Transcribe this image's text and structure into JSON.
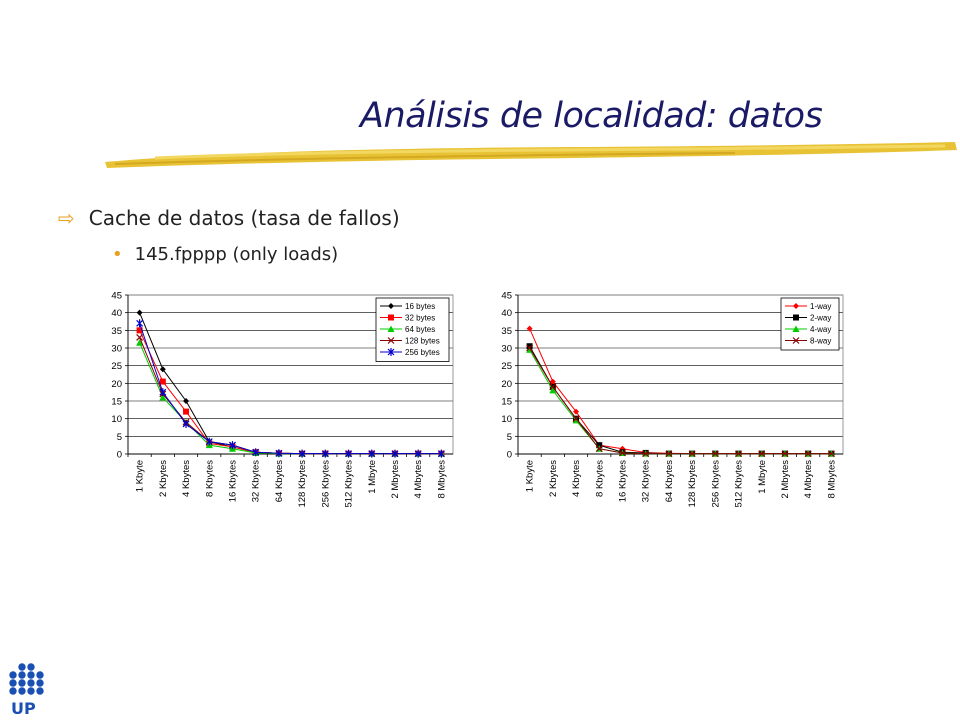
{
  "slide": {
    "title": "Análisis de localidad: datos",
    "bullet1": "Cache de datos (tasa de fallos)",
    "bullet2": "145.fpppp (only loads)",
    "logo_text": "UP"
  },
  "colors": {
    "accent": "#e8a020",
    "title": "#1a1a66",
    "logo": "#1a4fb3"
  },
  "chart_data": [
    {
      "type": "line",
      "categories": [
        "1 Kbyte",
        "2 Kbytes",
        "4 Kbytes",
        "8 Kbytes",
        "16 Kbytes",
        "32 Kbytes",
        "64 Kbytes",
        "128 Kbytes",
        "256 Kbytes",
        "512 Kbytes",
        "1 Mbyte",
        "2 Mbytes",
        "4 Mbytes",
        "8 Mbytes"
      ],
      "ylim": [
        0,
        45
      ],
      "yticks": [
        0,
        5,
        10,
        15,
        20,
        25,
        30,
        35,
        40,
        45
      ],
      "grid": true,
      "legend": "top-right",
      "series": [
        {
          "name": "16 bytes",
          "color": "#000000",
          "marker": "diamond",
          "values": [
            40,
            24,
            15,
            3.5,
            2,
            0.5,
            0.2,
            0.1,
            0.1,
            0.1,
            0.1,
            0.1,
            0.1,
            0.1
          ]
        },
        {
          "name": "32 bytes",
          "color": "#ff0000",
          "marker": "square",
          "values": [
            35,
            20.5,
            12,
            3,
            2,
            0.5,
            0.2,
            0.1,
            0.1,
            0.1,
            0.1,
            0.1,
            0.1,
            0.1
          ]
        },
        {
          "name": "64 bytes",
          "color": "#00cc00",
          "marker": "triangle",
          "values": [
            31.5,
            16,
            9,
            2.5,
            1.5,
            0.3,
            0.1,
            0.1,
            0.1,
            0.1,
            0.1,
            0.1,
            0.1,
            0.1
          ]
        },
        {
          "name": "128 bytes",
          "color": "#880000",
          "marker": "x",
          "values": [
            33,
            17,
            9,
            3.5,
            2.5,
            0.5,
            0.2,
            0.1,
            0.1,
            0.1,
            0.1,
            0.1,
            0.1,
            0.1
          ]
        },
        {
          "name": "256 bytes",
          "color": "#0000cc",
          "marker": "star",
          "values": [
            37,
            17.5,
            8.5,
            3.5,
            2.5,
            0.5,
            0.2,
            0.1,
            0.1,
            0.1,
            0.1,
            0.1,
            0.1,
            0.1
          ]
        }
      ]
    },
    {
      "type": "line",
      "categories": [
        "1 Kbyte",
        "2 Kbytes",
        "4 Kbytes",
        "8 Kbytes",
        "16 Kbytes",
        "32 Kbytes",
        "64 Kbytes",
        "128 Kbytes",
        "256 Kbytes",
        "512 Kbytes",
        "1 Mbyte",
        "2 Mbytes",
        "4 Mbytes",
        "8 Mbytes"
      ],
      "ylim": [
        0,
        45
      ],
      "yticks": [
        0,
        5,
        10,
        15,
        20,
        25,
        30,
        35,
        40,
        45
      ],
      "grid": true,
      "legend": "top-right",
      "series": [
        {
          "name": "1-way",
          "color": "#ff0000",
          "marker": "diamond",
          "values": [
            35.5,
            20.5,
            12,
            2.5,
            1.5,
            0.4,
            0.2,
            0.1,
            0.1,
            0.1,
            0.1,
            0.1,
            0.1,
            0.1
          ]
        },
        {
          "name": "2-way",
          "color": "#000000",
          "marker": "square",
          "values": [
            30.5,
            19,
            10,
            2.5,
            0.5,
            0.3,
            0.1,
            0.1,
            0.1,
            0.1,
            0.1,
            0.1,
            0.1,
            0.1
          ]
        },
        {
          "name": "4-way",
          "color": "#00cc00",
          "marker": "triangle",
          "values": [
            29.5,
            18,
            9.5,
            1.5,
            0.3,
            0.1,
            0.1,
            0.1,
            0.1,
            0.1,
            0.1,
            0.1,
            0.1,
            0.1
          ]
        },
        {
          "name": "8-way",
          "color": "#880000",
          "marker": "x",
          "values": [
            30,
            19,
            10,
            1.5,
            0.3,
            0.1,
            0.1,
            0.1,
            0.1,
            0.1,
            0.1,
            0.1,
            0.1,
            0.1
          ]
        }
      ]
    }
  ]
}
